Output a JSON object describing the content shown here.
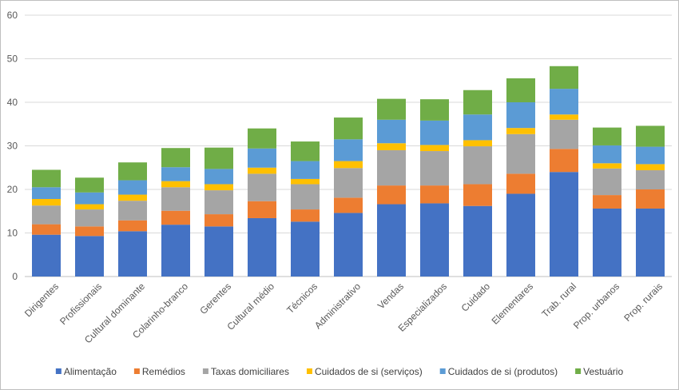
{
  "chart_data": {
    "type": "bar",
    "stacked": true,
    "title": "",
    "xlabel": "",
    "ylabel": "",
    "ylim": [
      0,
      60
    ],
    "yticks": [
      0,
      10,
      20,
      30,
      40,
      50,
      60
    ],
    "grid": true,
    "legend_position": "bottom",
    "categories": [
      "Dirigentes",
      "Profissionais",
      "Cultural dominante",
      "Colarinho-branco",
      "Gerentes",
      "Cultural médio",
      "Técnicos",
      "Administrativo",
      "Vendas",
      "Especializados",
      "Cuidado",
      "Elementares",
      "Trab. rural",
      "Prop. urbanos",
      "Prop. rurais"
    ],
    "series": [
      {
        "name": "Alimentação",
        "color": "#4472C4",
        "values": [
          9.6,
          9.3,
          10.4,
          11.9,
          11.5,
          13.4,
          12.6,
          14.6,
          16.6,
          16.8,
          16.2,
          19.0,
          24.0,
          15.6,
          15.6
        ]
      },
      {
        "name": "Remédios",
        "color": "#ED7D31",
        "values": [
          2.4,
          2.2,
          2.5,
          3.2,
          2.8,
          3.9,
          2.8,
          3.5,
          4.3,
          4.1,
          5.0,
          4.6,
          5.3,
          3.1,
          4.4
        ]
      },
      {
        "name": "Taxas domiciliares",
        "color": "#A5A5A5",
        "values": [
          4.3,
          3.9,
          4.5,
          5.4,
          5.5,
          6.3,
          5.8,
          6.8,
          8.1,
          7.9,
          8.7,
          9.1,
          6.7,
          6.1,
          4.4
        ]
      },
      {
        "name": "Cuidados de si (serviços)",
        "color": "#FFC000",
        "values": [
          1.5,
          1.2,
          1.4,
          1.4,
          1.4,
          1.4,
          1.2,
          1.6,
          1.6,
          1.4,
          1.4,
          1.4,
          1.2,
          1.2,
          1.4
        ]
      },
      {
        "name": "Cuidados de si (produtos)",
        "color": "#5B9BD5",
        "values": [
          2.7,
          2.7,
          3.3,
          3.2,
          3.5,
          4.4,
          4.1,
          5.0,
          5.4,
          5.6,
          5.9,
          5.9,
          5.9,
          4.1,
          4.0
        ]
      },
      {
        "name": "Vestuário",
        "color": "#70AD47",
        "values": [
          4.0,
          3.4,
          4.1,
          4.4,
          4.9,
          4.6,
          4.5,
          5.0,
          4.8,
          4.9,
          5.6,
          5.5,
          5.2,
          4.1,
          4.8
        ]
      }
    ]
  }
}
